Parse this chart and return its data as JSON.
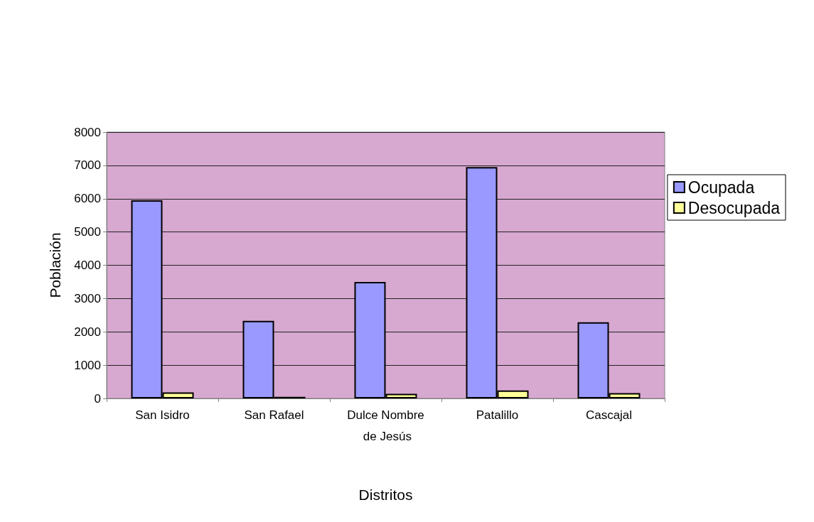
{
  "chart_data": {
    "type": "bar",
    "xlabel": "Distritos",
    "ylabel": "Población",
    "categories": [
      "San Isidro",
      "San Rafael",
      "Dulce Nombre de Jesús",
      "Patalillo",
      "Cascajal"
    ],
    "series": [
      {
        "name": "Ocupada",
        "color": "#9999ff",
        "values": [
          5950,
          2330,
          3500,
          6950,
          2290
        ]
      },
      {
        "name": "Desocupada",
        "color": "#ffff99",
        "values": [
          180,
          50,
          140,
          240,
          160
        ]
      }
    ],
    "ylim": [
      0,
      8000
    ],
    "yticks": [
      0,
      1000,
      2000,
      3000,
      4000,
      5000,
      6000,
      7000,
      8000
    ],
    "grid": "y",
    "legend": "right"
  }
}
